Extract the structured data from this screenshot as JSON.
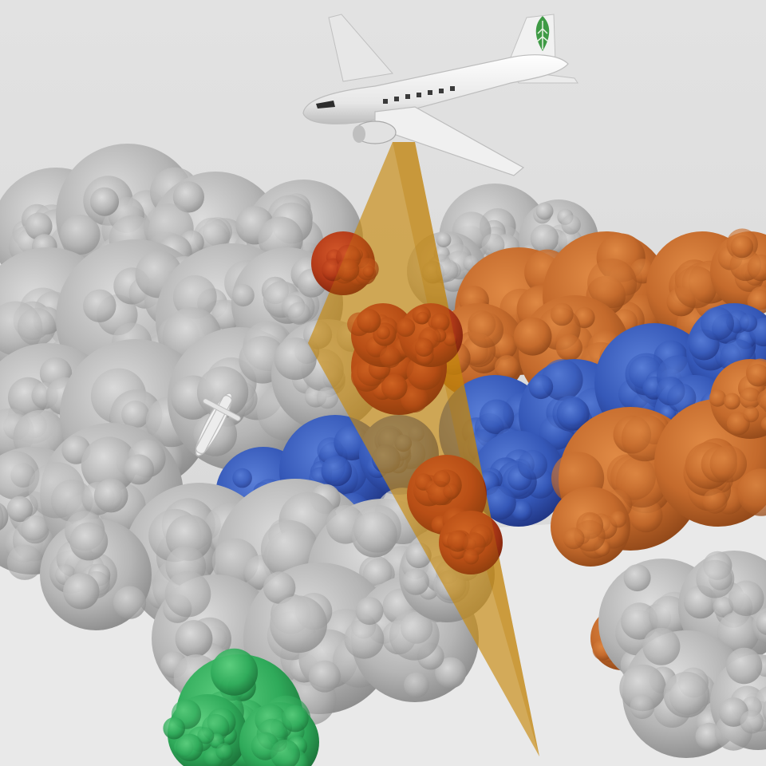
{
  "scene": {
    "colors": {
      "sky": "#dedede",
      "ground": "#e8e8e8",
      "gray_canopy": "#b9b9b9",
      "gray_canopy_dark": "#8c8c8c",
      "orange_canopy": "#c46a2c",
      "orange_canopy_dark": "#9a4d1c",
      "blue_canopy": "#3558b8",
      "blue_canopy_dark": "#22388a",
      "green_canopy": "#2faa5a",
      "green_canopy_dark": "#1d7a3c",
      "red_canopy": "#b33a18",
      "beam": "#c98a10",
      "aircraft_body": "#f2f2f2",
      "aircraft_shadow": "#c7c7c7",
      "tail_logo": "#3e9a45"
    },
    "icons": {
      "aircraft": "airplane-icon",
      "drone": "drone-icon",
      "tail_logo": "leaf-icon"
    }
  }
}
